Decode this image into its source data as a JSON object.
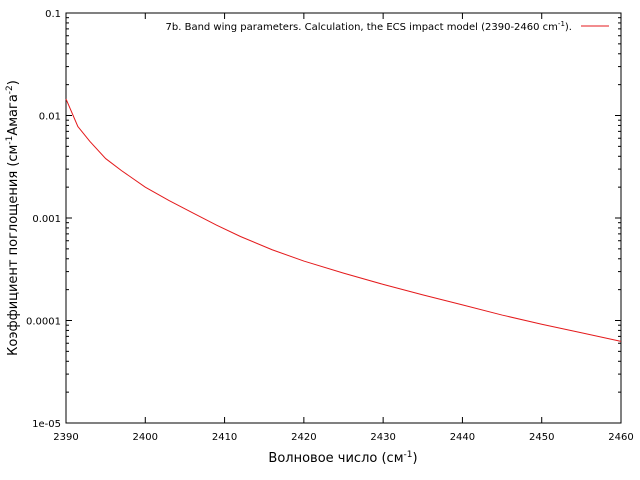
{
  "chart_data": {
    "type": "line",
    "xlabel_main": "Волновое число (см",
    "xlabel_sup": "-1",
    "xlabel_end": ")",
    "ylabel_a": "Коэффициент поглощения (см",
    "ylabel_sup1": "-1",
    "ylabel_b": "Амага",
    "ylabel_sup2": "-2",
    "ylabel_end": ")",
    "xlim": [
      2390,
      2460
    ],
    "ylim": [
      1e-05,
      0.1
    ],
    "yscale": "log",
    "x_ticks": [
      2390,
      2400,
      2410,
      2420,
      2430,
      2440,
      2450,
      2460
    ],
    "x_tick_labels": [
      "2390",
      "2400",
      "2410",
      "2420",
      "2430",
      "2440",
      "2450",
      "2460"
    ],
    "y_ticks": [
      1e-05,
      0.0001,
      0.001,
      0.01,
      0.1
    ],
    "y_tick_labels": [
      "1e-05",
      "0.0001",
      "0.001",
      "0.01",
      "0.1"
    ],
    "legend_position": "top-right",
    "series": [
      {
        "name_main": "7b. Band wing parameters. Calculation, the ECS impact model (2390-2460 cm",
        "name_sup": "-1",
        "name_end": ").",
        "color": "#e41a1c",
        "x": [
          2390,
          2391.5,
          2393,
          2395,
          2397,
          2400,
          2403,
          2406,
          2409,
          2412,
          2416,
          2420,
          2425,
          2430,
          2435,
          2440,
          2445,
          2450,
          2455,
          2460
        ],
        "y": [
          0.0145,
          0.0078,
          0.0056,
          0.0038,
          0.0029,
          0.002,
          0.00148,
          0.00112,
          0.00085,
          0.00066,
          0.00049,
          0.00038,
          0.00029,
          0.000225,
          0.000178,
          0.000142,
          0.000113,
          9.2e-05,
          7.6e-05,
          6.25e-05
        ]
      }
    ]
  }
}
